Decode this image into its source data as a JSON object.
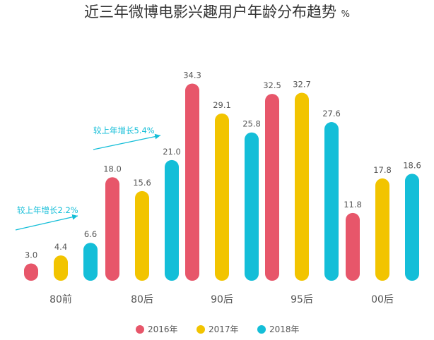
{
  "chart_data": {
    "type": "bar",
    "title": "近三年微博电影兴趣用户年龄分布趋势",
    "unit": "%",
    "categories": [
      "80前",
      "80后",
      "90后",
      "95后",
      "00后"
    ],
    "series": [
      {
        "name": "2016年",
        "color": "#e7566a",
        "values": [
          3.0,
          18.0,
          34.3,
          32.5,
          11.8
        ]
      },
      {
        "name": "2017年",
        "color": "#f2c400",
        "values": [
          4.4,
          15.6,
          29.1,
          32.7,
          17.8
        ]
      },
      {
        "name": "2018年",
        "color": "#14bed8",
        "values": [
          6.6,
          21.0,
          25.8,
          27.6,
          18.6
        ]
      }
    ],
    "value_labels": [
      [
        "3.0",
        "18.0",
        "34.3",
        "32.5",
        "11.8"
      ],
      [
        "4.4",
        "15.6",
        "29.1",
        "32.7",
        "17.8"
      ],
      [
        "6.6",
        "21.0",
        "25.8",
        "27.6",
        "18.6"
      ]
    ],
    "annotations": [
      {
        "category": "80前",
        "text": "较上年增长2.2%"
      },
      {
        "category": "80后",
        "text": "较上年增长5.4%"
      }
    ],
    "annotation_color": "#14bed8",
    "ylim": [
      0,
      35
    ],
    "grid": false,
    "legend_position": "bottom"
  }
}
